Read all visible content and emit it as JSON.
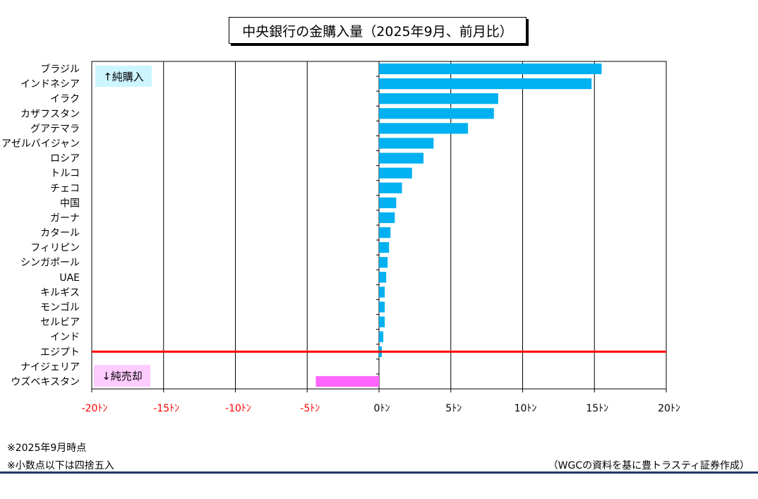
{
  "colors": {
    "positive_bar": "#00b0f0",
    "negative_bar": "#ff66ff",
    "zero_line": "#ff0000",
    "grid": "#000000",
    "neg_tick": "#ff0000",
    "pos_tick": "#000000",
    "buy_label_bg": "#ccf5ff",
    "sell_label_bg": "#ffccff",
    "footer_rule": "#203864"
  },
  "chart_data": {
    "type": "bar",
    "orientation": "horizontal",
    "title": "中央銀行の金購入量（2025年9月、前月比）",
    "categories": [
      "ブラジル",
      "インドネシア",
      "イラク",
      "カザフスタン",
      "グアテマラ",
      "アゼルバイジャン",
      "ロシア",
      "トルコ",
      "チェコ",
      "中国",
      "ガーナ",
      "カタール",
      "フィリピン",
      "シンガポール",
      "UAE",
      "キルギス",
      "モンゴル",
      "セルビア",
      "インド",
      "エジプト",
      "ナイジェリア",
      "ウズベキスタン"
    ],
    "values": [
      15.5,
      14.8,
      8.3,
      8.0,
      6.2,
      3.8,
      3.1,
      2.3,
      1.6,
      1.2,
      1.1,
      0.8,
      0.7,
      0.6,
      0.5,
      0.4,
      0.4,
      0.4,
      0.3,
      0.2,
      0.0,
      -4.4
    ],
    "xlim": [
      -20,
      20
    ],
    "xticks": [
      -20,
      -15,
      -10,
      -5,
      0,
      5,
      10,
      15,
      20
    ],
    "xtick_labels": [
      "-20ﾄﾝ",
      "-15ﾄﾝ",
      "-10ﾄﾝ",
      "-5ﾄﾝ",
      "0ﾄﾝ",
      "5ﾄﾝ",
      "10ﾄﾝ",
      "15ﾄﾝ",
      "20ﾄﾝ"
    ],
    "grid": "vertical",
    "annotations": {
      "buy": "↑純購入",
      "sell": "↓純売却"
    }
  },
  "notes": [
    "※2025年9月時点",
    "※小数点以下は四捨五入"
  ],
  "source": "（WGCの資料を基に豊トラスティ証券作成）"
}
